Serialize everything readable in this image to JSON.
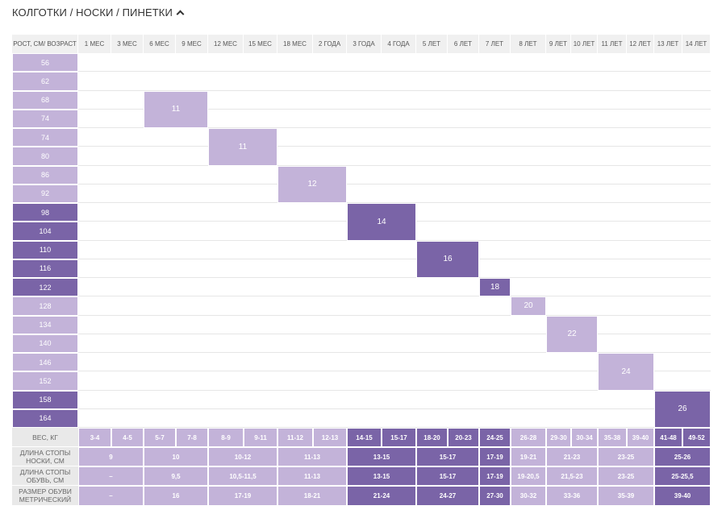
{
  "title": "КОЛГОТКИ / НОСКИ / ПИНЕТКИ",
  "header": {
    "corner": "РОСТ, СМ/ ВОЗРАСТ",
    "ages": [
      "1 МЕС",
      "3 МЕС",
      "6 МЕС",
      "9 МЕС",
      "12 МЕС",
      "15 МЕС",
      "18 МЕС",
      "2 ГОДА",
      "3 ГОДА",
      "4 ГОДА",
      "5 ЛЕТ",
      "6 ЛЕТ",
      "7 ЛЕТ",
      "8 ЛЕТ",
      "9 ЛЕТ",
      "10 ЛЕТ",
      "11 ЛЕТ",
      "12 ЛЕТ",
      "13 ЛЕТ",
      "14 ЛЕТ"
    ]
  },
  "heights": [
    {
      "label": "56",
      "color": "#c3b3d9"
    },
    {
      "label": "62",
      "color": "#c3b3d9"
    },
    {
      "label": "68",
      "color": "#c3b3d9"
    },
    {
      "label": "74",
      "color": "#c3b3d9"
    },
    {
      "label": "74",
      "color": "#c3b3d9"
    },
    {
      "label": "80",
      "color": "#c3b3d9"
    },
    {
      "label": "86",
      "color": "#c3b3d9"
    },
    {
      "label": "92",
      "color": "#c3b3d9"
    },
    {
      "label": "98",
      "color": "#7a64a7"
    },
    {
      "label": "104",
      "color": "#7a64a7"
    },
    {
      "label": "110",
      "color": "#7a64a7"
    },
    {
      "label": "116",
      "color": "#7a64a7"
    },
    {
      "label": "122",
      "color": "#7a64a7"
    },
    {
      "label": "128",
      "color": "#c3b3d9"
    },
    {
      "label": "134",
      "color": "#c3b3d9"
    },
    {
      "label": "140",
      "color": "#c3b3d9"
    },
    {
      "label": "146",
      "color": "#c3b3d9"
    },
    {
      "label": "152",
      "color": "#c3b3d9"
    },
    {
      "label": "158",
      "color": "#7a64a7"
    },
    {
      "label": "164",
      "color": "#7a64a7"
    }
  ],
  "sizes": [
    {
      "label": "11",
      "row": 2,
      "rows": 2,
      "col": 2,
      "cols": 2,
      "color": "#c3b3d9"
    },
    {
      "label": "11",
      "row": 4,
      "rows": 2,
      "col": 4,
      "cols": 2,
      "color": "#c3b3d9"
    },
    {
      "label": "12",
      "row": 6,
      "rows": 2,
      "col": 6,
      "cols": 2,
      "color": "#c3b3d9"
    },
    {
      "label": "14",
      "row": 8,
      "rows": 2,
      "col": 8,
      "cols": 2,
      "color": "#7a64a7"
    },
    {
      "label": "16",
      "row": 10,
      "rows": 2,
      "col": 10,
      "cols": 2,
      "color": "#7a64a7"
    },
    {
      "label": "18",
      "row": 12,
      "rows": 1,
      "col": 12,
      "cols": 1,
      "color": "#7a64a7"
    },
    {
      "label": "20",
      "row": 13,
      "rows": 1,
      "col": 13,
      "cols": 1,
      "color": "#c3b3d9"
    },
    {
      "label": "22",
      "row": 14,
      "rows": 2,
      "col": 14,
      "cols": 2,
      "color": "#c3b3d9"
    },
    {
      "label": "24",
      "row": 16,
      "rows": 2,
      "col": 16,
      "cols": 2,
      "color": "#c3b3d9"
    },
    {
      "label": "26",
      "row": 18,
      "rows": 2,
      "col": 18,
      "cols": 2,
      "color": "#7a64a7"
    }
  ],
  "footer": [
    {
      "label": "ВЕС, КГ",
      "cells": [
        {
          "text": "3-4",
          "span": 1,
          "color": "#c3b3d9"
        },
        {
          "text": "4-5",
          "span": 1,
          "color": "#c3b3d9"
        },
        {
          "text": "5-7",
          "span": 1,
          "color": "#c3b3d9"
        },
        {
          "text": "7-8",
          "span": 1,
          "color": "#c3b3d9"
        },
        {
          "text": "8-9",
          "span": 1,
          "color": "#c3b3d9"
        },
        {
          "text": "9-11",
          "span": 1,
          "color": "#c3b3d9"
        },
        {
          "text": "11-12",
          "span": 1,
          "color": "#c3b3d9"
        },
        {
          "text": "12-13",
          "span": 1,
          "color": "#c3b3d9"
        },
        {
          "text": "14-15",
          "span": 1,
          "color": "#7a64a7"
        },
        {
          "text": "15-17",
          "span": 1,
          "color": "#7a64a7"
        },
        {
          "text": "18-20",
          "span": 1,
          "color": "#7a64a7"
        },
        {
          "text": "20-23",
          "span": 1,
          "color": "#7a64a7"
        },
        {
          "text": "24-25",
          "span": 1,
          "color": "#7a64a7"
        },
        {
          "text": "26-28",
          "span": 1,
          "color": "#c3b3d9"
        },
        {
          "text": "29-30",
          "span": 1,
          "color": "#c3b3d9"
        },
        {
          "text": "30-34",
          "span": 1,
          "color": "#c3b3d9"
        },
        {
          "text": "35-38",
          "span": 1,
          "color": "#c3b3d9"
        },
        {
          "text": "39-40",
          "span": 1,
          "color": "#c3b3d9"
        },
        {
          "text": "41-48",
          "span": 1,
          "color": "#7a64a7"
        },
        {
          "text": "49-52",
          "span": 1,
          "color": "#7a64a7"
        }
      ]
    },
    {
      "label": "ДЛИНА СТОПЫ\nНОСКИ, СМ",
      "cells": [
        {
          "text": "9",
          "span": 2,
          "color": "#c3b3d9"
        },
        {
          "text": "10",
          "span": 2,
          "color": "#c3b3d9"
        },
        {
          "text": "10-12",
          "span": 2,
          "color": "#c3b3d9"
        },
        {
          "text": "11-13",
          "span": 2,
          "color": "#c3b3d9"
        },
        {
          "text": "13-15",
          "span": 2,
          "color": "#7a64a7"
        },
        {
          "text": "15-17",
          "span": 2,
          "color": "#7a64a7"
        },
        {
          "text": "17-19",
          "span": 1,
          "color": "#7a64a7"
        },
        {
          "text": "19-21",
          "span": 1,
          "color": "#c3b3d9"
        },
        {
          "text": "21-23",
          "span": 2,
          "color": "#c3b3d9"
        },
        {
          "text": "23-25",
          "span": 2,
          "color": "#c3b3d9"
        },
        {
          "text": "25-26",
          "span": 2,
          "color": "#7a64a7"
        }
      ]
    },
    {
      "label": "ДЛИНА СТОПЫ\nОБУВЬ, СМ",
      "cells": [
        {
          "text": "–",
          "span": 2,
          "color": "#c3b3d9"
        },
        {
          "text": "9,5",
          "span": 2,
          "color": "#c3b3d9"
        },
        {
          "text": "10,5-11,5",
          "span": 2,
          "color": "#c3b3d9"
        },
        {
          "text": "11-13",
          "span": 2,
          "color": "#c3b3d9"
        },
        {
          "text": "13-15",
          "span": 2,
          "color": "#7a64a7"
        },
        {
          "text": "15-17",
          "span": 2,
          "color": "#7a64a7"
        },
        {
          "text": "17-19",
          "span": 1,
          "color": "#7a64a7"
        },
        {
          "text": "19-20,5",
          "span": 1,
          "color": "#c3b3d9"
        },
        {
          "text": "21,5-23",
          "span": 2,
          "color": "#c3b3d9"
        },
        {
          "text": "23-25",
          "span": 2,
          "color": "#c3b3d9"
        },
        {
          "text": "25-25,5",
          "span": 2,
          "color": "#7a64a7"
        }
      ]
    },
    {
      "label": "РАЗМЕР ОБУВИ\nМЕТРИЧЕСКИЙ",
      "cells": [
        {
          "text": "–",
          "span": 2,
          "color": "#c3b3d9"
        },
        {
          "text": "16",
          "span": 2,
          "color": "#c3b3d9"
        },
        {
          "text": "17-19",
          "span": 2,
          "color": "#c3b3d9"
        },
        {
          "text": "18-21",
          "span": 2,
          "color": "#c3b3d9"
        },
        {
          "text": "21-24",
          "span": 2,
          "color": "#7a64a7"
        },
        {
          "text": "24-27",
          "span": 2,
          "color": "#7a64a7"
        },
        {
          "text": "27-30",
          "span": 1,
          "color": "#7a64a7"
        },
        {
          "text": "30-32",
          "span": 1,
          "color": "#c3b3d9"
        },
        {
          "text": "33-36",
          "span": 2,
          "color": "#c3b3d9"
        },
        {
          "text": "35-39",
          "span": 2,
          "color": "#c3b3d9"
        },
        {
          "text": "39-40",
          "span": 2,
          "color": "#7a64a7"
        }
      ]
    }
  ]
}
